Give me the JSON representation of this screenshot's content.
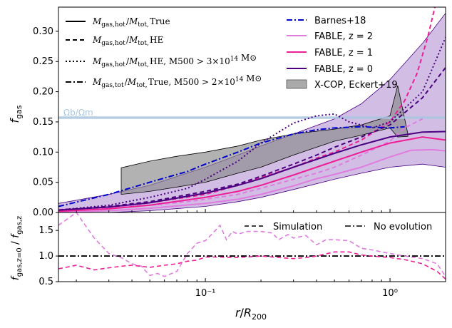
{
  "chart_data": [
    {
      "type": "line",
      "panel": "top",
      "ylabel": "f_gas",
      "ylim": [
        0.0,
        0.34
      ],
      "xlim": [
        0.016,
        2.0
      ],
      "xscale": "log",
      "yticks": [
        "0.00",
        "0.05",
        "0.10",
        "0.15",
        "0.20",
        "0.25",
        "0.30"
      ],
      "omega_ratio": {
        "label": "Ωb/Ωm",
        "value": 0.157,
        "color": "#a9c6df"
      },
      "legend_left": [
        {
          "label": "M_gas,hot/M_tot,True",
          "style": "solid"
        },
        {
          "label": "M_gas,hot/M_tot,HE",
          "style": "dashed"
        },
        {
          "label": "M_gas,hot/M_tot,HE, M500 > 3×10^14 M⊙",
          "style": "dotted"
        },
        {
          "label": "M_gas,tot/M_tot,True, M500 > 2×10^14 M⊙",
          "style": "dashdot"
        }
      ],
      "legend_right": [
        {
          "label": "Barnes+18",
          "color": "#0000cc",
          "style": "dashdot"
        },
        {
          "label": "FABLE, z = 2",
          "color": "#e07be0",
          "style": "solid"
        },
        {
          "label": "FABLE, z = 1",
          "color": "#ee1e96",
          "style": "solid"
        },
        {
          "label": "FABLE, z = 0",
          "color": "#4b0082",
          "style": "solid"
        },
        {
          "label": "X-COP, Eckert+19",
          "color": "#999999",
          "style": "patch"
        }
      ],
      "series": [
        {
          "name": "FABLE z=2 solid",
          "color": "#e07be0",
          "dash": "",
          "x": [
            0.016,
            0.03,
            0.05,
            0.1,
            0.15,
            0.2,
            0.3,
            0.4,
            0.5,
            0.7,
            1.0,
            1.3,
            1.7,
            2.0
          ],
          "y": [
            0.0,
            0.003,
            0.007,
            0.015,
            0.022,
            0.03,
            0.044,
            0.056,
            0.063,
            0.075,
            0.092,
            0.103,
            0.104,
            0.102
          ]
        },
        {
          "name": "FABLE z=2 dashed",
          "color": "#e07be0",
          "dash": "6,4",
          "x": [
            0.016,
            0.03,
            0.05,
            0.08,
            0.1,
            0.15,
            0.2,
            0.3,
            0.4,
            0.5,
            0.7,
            1.0,
            1.2,
            1.5
          ],
          "y": [
            0.005,
            0.008,
            0.012,
            0.018,
            0.022,
            0.03,
            0.04,
            0.055,
            0.065,
            0.075,
            0.095,
            0.118,
            0.14,
            0.155
          ]
        },
        {
          "name": "FABLE z=1 solid",
          "color": "#ee1e96",
          "dash": "",
          "x": [
            0.016,
            0.03,
            0.05,
            0.1,
            0.15,
            0.2,
            0.3,
            0.4,
            0.5,
            0.7,
            1.0,
            1.5,
            2.0
          ],
          "y": [
            0.002,
            0.006,
            0.012,
            0.025,
            0.035,
            0.045,
            0.062,
            0.075,
            0.085,
            0.1,
            0.115,
            0.125,
            0.12
          ]
        },
        {
          "name": "FABLE z=1 dashed",
          "color": "#ee1e96",
          "dash": "6,4",
          "x": [
            0.016,
            0.03,
            0.05,
            0.1,
            0.15,
            0.2,
            0.3,
            0.4,
            0.5,
            0.7,
            1.0,
            1.2,
            1.4,
            1.6,
            1.75
          ],
          "y": [
            0.004,
            0.009,
            0.016,
            0.03,
            0.045,
            0.058,
            0.075,
            0.09,
            0.1,
            0.12,
            0.15,
            0.185,
            0.23,
            0.29,
            0.34
          ]
        },
        {
          "name": "FABLE z=0 solid",
          "color": "#4b0082",
          "dash": "",
          "x": [
            0.016,
            0.03,
            0.05,
            0.1,
            0.15,
            0.2,
            0.3,
            0.4,
            0.5,
            0.7,
            1.0,
            1.5,
            2.0
          ],
          "y": [
            0.004,
            0.009,
            0.016,
            0.032,
            0.045,
            0.056,
            0.075,
            0.088,
            0.098,
            0.112,
            0.125,
            0.133,
            0.134
          ]
        },
        {
          "name": "FABLE z=0 dashed",
          "color": "#4b0082",
          "dash": "6,4",
          "x": [
            0.016,
            0.03,
            0.05,
            0.1,
            0.15,
            0.2,
            0.3,
            0.4,
            0.5,
            0.7,
            1.0,
            1.5,
            2.0
          ],
          "y": [
            0.004,
            0.01,
            0.018,
            0.035,
            0.047,
            0.06,
            0.08,
            0.095,
            0.108,
            0.125,
            0.145,
            0.19,
            0.24
          ]
        },
        {
          "name": "FABLE z=0 dotted",
          "color": "#4b0082",
          "dash": "2,3",
          "x": [
            0.016,
            0.03,
            0.05,
            0.08,
            0.1,
            0.15,
            0.2,
            0.3,
            0.4,
            0.5,
            0.6,
            0.8,
            1.0,
            1.5,
            2.0
          ],
          "y": [
            0.004,
            0.012,
            0.025,
            0.04,
            0.055,
            0.085,
            0.115,
            0.148,
            0.16,
            0.163,
            0.15,
            0.14,
            0.15,
            0.2,
            0.29
          ]
        },
        {
          "name": "Barnes+18",
          "color": "#0000cc",
          "dash": "8,3,2,3",
          "x": [
            0.016,
            0.03,
            0.05,
            0.08,
            0.1,
            0.15,
            0.2,
            0.3,
            0.4,
            0.5,
            0.7,
            1.0,
            1.2
          ],
          "y": [
            0.01,
            0.03,
            0.05,
            0.068,
            0.08,
            0.1,
            0.115,
            0.13,
            0.137,
            0.14,
            0.142,
            0.14,
            0.142
          ]
        }
      ],
      "bands": [
        {
          "name": "FABLE z=0 scatter",
          "fill": "#9b6fc4",
          "opacity": 0.45,
          "x": [
            0.016,
            0.03,
            0.05,
            0.1,
            0.15,
            0.2,
            0.3,
            0.5,
            0.7,
            1.0,
            1.5,
            2.0
          ],
          "upper": [
            0.015,
            0.03,
            0.045,
            0.075,
            0.095,
            0.11,
            0.13,
            0.155,
            0.18,
            0.22,
            0.28,
            0.33
          ],
          "lower": [
            0.0,
            0.0,
            0.003,
            0.01,
            0.018,
            0.025,
            0.038,
            0.055,
            0.065,
            0.075,
            0.08,
            0.075
          ]
        },
        {
          "name": "X-COP, Eckert+19",
          "fill": "#888888",
          "opacity": 0.65,
          "x": [
            0.035,
            0.05,
            0.07,
            0.1,
            0.15,
            0.2,
            0.3,
            0.5,
            0.7,
            1.0,
            1.1,
            1.25
          ],
          "upper": [
            0.074,
            0.085,
            0.093,
            0.1,
            0.11,
            0.12,
            0.13,
            0.138,
            0.145,
            0.16,
            0.21,
            0.13
          ],
          "lower": [
            0.03,
            0.035,
            0.042,
            0.05,
            0.065,
            0.075,
            0.095,
            0.118,
            0.128,
            0.14,
            0.125,
            0.126
          ]
        }
      ]
    },
    {
      "type": "line",
      "panel": "bottom",
      "ylabel": "f_gas,z=0 / f_gas,z",
      "xlabel": "r/R200",
      "ylim": [
        0.5,
        1.85
      ],
      "xlim": [
        0.016,
        2.0
      ],
      "xscale": "log",
      "yticks": [
        "0.5",
        "1.0",
        "1.5"
      ],
      "xticks": [
        "10⁻¹",
        "10⁰"
      ],
      "legend": [
        {
          "label": "Simulation",
          "style": "dashed"
        },
        {
          "label": "No evolution",
          "style": "dashdot"
        }
      ],
      "reference_line": 1.0,
      "series": [
        {
          "name": "z=2 ratio",
          "color": "#e07be0",
          "dash": "6,4",
          "x": [
            0.016,
            0.02,
            0.025,
            0.03,
            0.035,
            0.04,
            0.045,
            0.05,
            0.055,
            0.06,
            0.07,
            0.08,
            0.09,
            0.1,
            0.11,
            0.12,
            0.13,
            0.14,
            0.15,
            0.17,
            0.2,
            0.23,
            0.25,
            0.28,
            0.3,
            0.35,
            0.4,
            0.45,
            0.5,
            0.6,
            0.7,
            0.8,
            0.9,
            1.0,
            1.2,
            1.5,
            1.8,
            2.0
          ],
          "y": [
            1.6,
            1.85,
            1.35,
            1.05,
            0.97,
            0.85,
            0.8,
            0.62,
            0.66,
            0.6,
            0.7,
            1.05,
            1.25,
            1.3,
            1.45,
            1.6,
            1.32,
            1.48,
            1.43,
            1.48,
            1.48,
            1.45,
            1.32,
            1.42,
            1.35,
            1.4,
            1.22,
            1.32,
            1.32,
            1.3,
            1.15,
            1.12,
            1.08,
            1.05,
            1.0,
            0.95,
            0.85,
            0.6
          ]
        },
        {
          "name": "z=1 ratio",
          "color": "#ee1e96",
          "dash": "6,4",
          "x": [
            0.016,
            0.02,
            0.025,
            0.03,
            0.035,
            0.04,
            0.05,
            0.06,
            0.07,
            0.08,
            0.09,
            0.1,
            0.12,
            0.15,
            0.2,
            0.25,
            0.3,
            0.35,
            0.4,
            0.5,
            0.6,
            0.7,
            0.8,
            1.0,
            1.2,
            1.5,
            1.8,
            2.0
          ],
          "y": [
            0.75,
            0.82,
            0.73,
            0.77,
            0.8,
            0.82,
            0.78,
            0.82,
            0.85,
            0.9,
            0.92,
            0.98,
            0.98,
            0.97,
            1.0,
            0.97,
            0.95,
            0.97,
            1.0,
            1.08,
            1.08,
            1.02,
            1.0,
            0.97,
            0.93,
            0.85,
            0.7,
            0.55
          ]
        }
      ]
    }
  ]
}
